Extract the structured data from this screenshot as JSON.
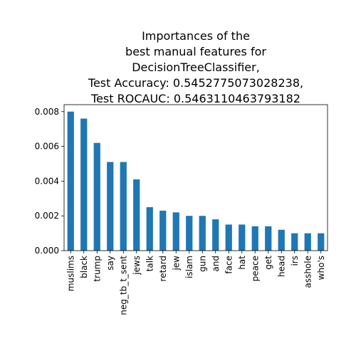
{
  "chart_data": {
    "type": "bar",
    "title_lines": [
      "Importances of the",
      "best manual features for",
      "DecisionTreeClassifier,",
      "Test Accuracy: 0.5452775073028238,",
      "Test ROCAUC: 0.5463110463793182"
    ],
    "categories": [
      "muslims",
      "black",
      "trump",
      "say",
      "neg_tb_t_sent",
      "jews",
      "talk",
      "retard",
      "jew",
      "islam",
      "gun",
      "and",
      "face",
      "hat",
      "peace",
      "get",
      "head",
      "irs",
      "asshole",
      "who's"
    ],
    "values": [
      0.008,
      0.0076,
      0.0062,
      0.0051,
      0.0051,
      0.0041,
      0.0025,
      0.0023,
      0.0022,
      0.002,
      0.002,
      0.0018,
      0.0015,
      0.0015,
      0.0014,
      0.0014,
      0.0012,
      0.001,
      0.001,
      0.001
    ],
    "ylim": [
      0,
      0.0084
    ],
    "yticks": [
      0.0,
      0.002,
      0.004,
      0.006,
      0.008
    ],
    "ytick_labels": [
      "0.000",
      "0.002",
      "0.004",
      "0.006",
      "0.008"
    ],
    "bar_color": "#1f77b4",
    "grid": false,
    "xlabel": "",
    "ylabel": ""
  }
}
